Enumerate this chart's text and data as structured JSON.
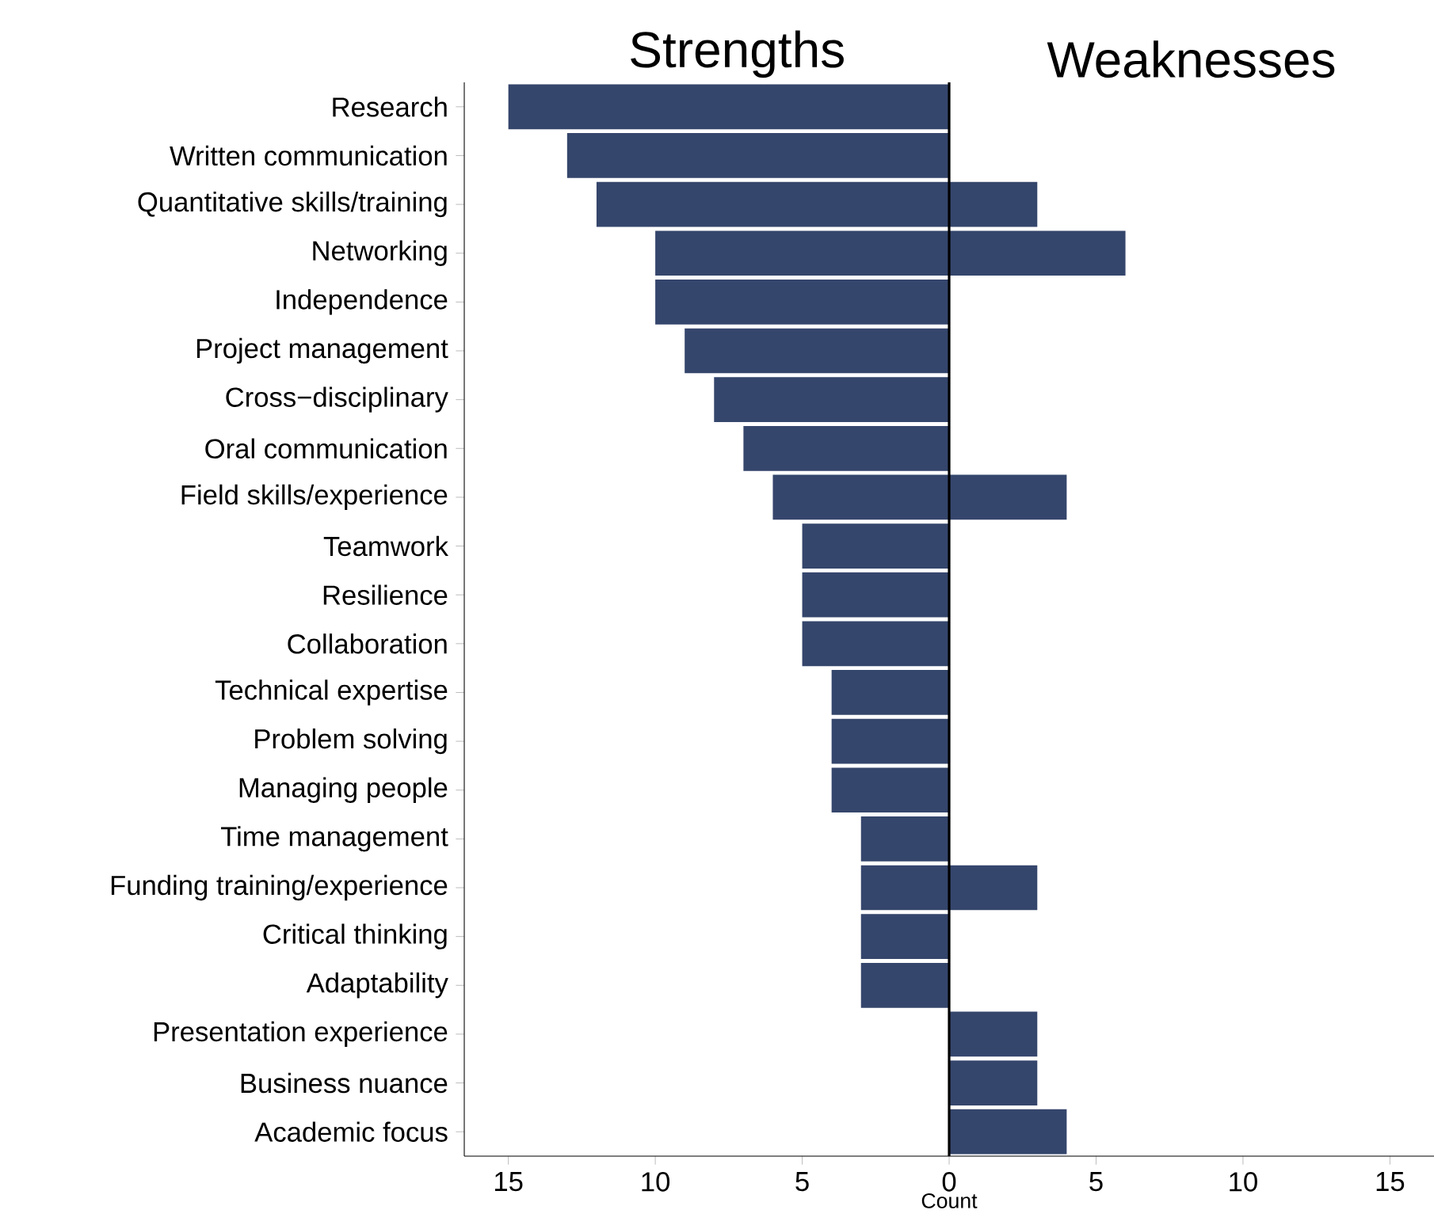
{
  "chart_data": {
    "type": "bar",
    "orientation": "horizontal",
    "xlabel": "Count",
    "categories": [
      "Research",
      "Written communication",
      "Quantitative skills/training",
      "Networking",
      "Independence",
      "Project management",
      "Cross−disciplinary",
      "Oral communication",
      "Field skills/experience",
      "Teamwork",
      "Resilience",
      "Collaboration",
      "Technical expertise",
      "Problem solving",
      "Managing people",
      "Time management",
      "Funding training/experience",
      "Critical thinking",
      "Adaptability",
      "Presentation experience",
      "Business nuance",
      "Academic focus"
    ],
    "series": [
      {
        "name": "Strengths",
        "color": "#35466c",
        "values": [
          -15,
          -13,
          -12,
          -10,
          -10,
          -9,
          -8,
          -7,
          -6,
          -5,
          -5,
          -5,
          -4,
          -4,
          -4,
          -3,
          -3,
          -3,
          -3,
          null,
          null,
          null
        ]
      },
      {
        "name": "Weaknesses",
        "color": "#35466c",
        "values": [
          null,
          null,
          3,
          6,
          null,
          null,
          null,
          null,
          4,
          null,
          null,
          null,
          null,
          null,
          null,
          null,
          3,
          null,
          null,
          3,
          3,
          4
        ]
      }
    ],
    "xlim": [
      -16.5,
      16.5
    ],
    "xticks": [
      {
        "value": -15,
        "label": "15"
      },
      {
        "value": -10,
        "label": "10"
      },
      {
        "value": -5,
        "label": "5"
      },
      0,
      5,
      10,
      15
    ],
    "ref_lines": [
      {
        "axis": "x",
        "value": 0,
        "color": "#000000"
      }
    ],
    "grid": false,
    "legend": false
  }
}
